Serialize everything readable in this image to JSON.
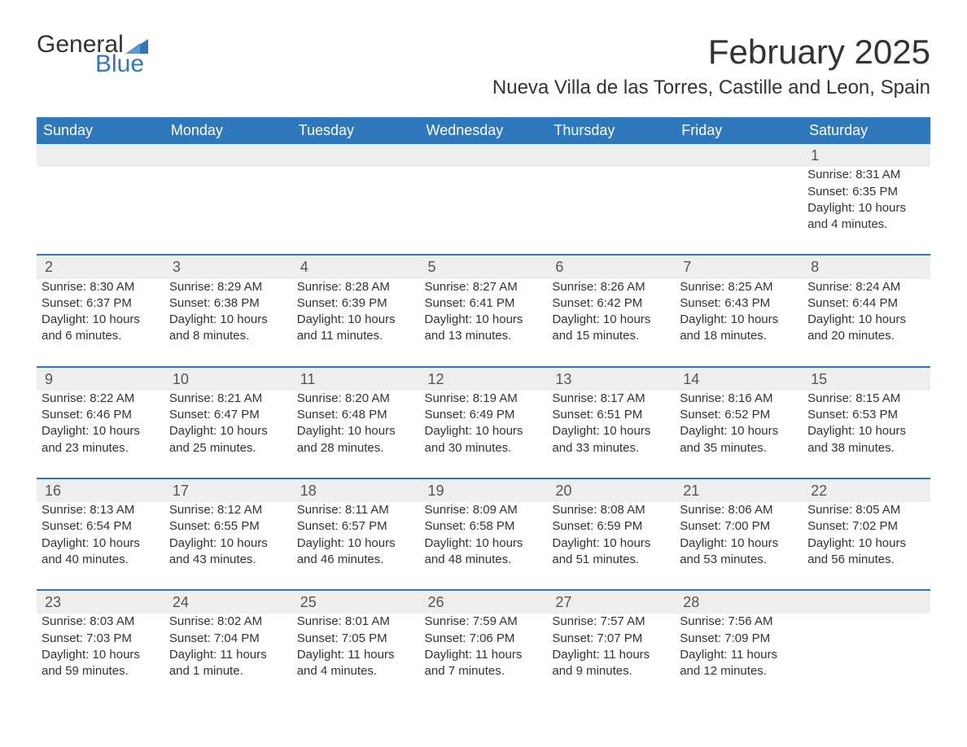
{
  "brand": {
    "word1": "General",
    "word2": "Blue",
    "text_color": "#333333",
    "accent_color": "#2f78bc"
  },
  "title": "February 2025",
  "location": "Nueva Villa de las Torres, Castille and Leon, Spain",
  "colors": {
    "header_bg": "#2f78bc",
    "header_text": "#ffffff",
    "daynum_bg": "#eeeeee",
    "text": "#333333",
    "separator": "#2f78bc",
    "background": "#ffffff"
  },
  "typography": {
    "title_fontsize": 42,
    "location_fontsize": 24,
    "header_fontsize": 18,
    "daynum_fontsize": 18,
    "cell_fontsize": 15
  },
  "weekdays": [
    "Sunday",
    "Monday",
    "Tuesday",
    "Wednesday",
    "Thursday",
    "Friday",
    "Saturday"
  ],
  "weeks": [
    [
      null,
      null,
      null,
      null,
      null,
      null,
      {
        "day": "1",
        "sunrise": "Sunrise: 8:31 AM",
        "sunset": "Sunset: 6:35 PM",
        "daylight": "Daylight: 10 hours and 4 minutes."
      }
    ],
    [
      {
        "day": "2",
        "sunrise": "Sunrise: 8:30 AM",
        "sunset": "Sunset: 6:37 PM",
        "daylight": "Daylight: 10 hours and 6 minutes."
      },
      {
        "day": "3",
        "sunrise": "Sunrise: 8:29 AM",
        "sunset": "Sunset: 6:38 PM",
        "daylight": "Daylight: 10 hours and 8 minutes."
      },
      {
        "day": "4",
        "sunrise": "Sunrise: 8:28 AM",
        "sunset": "Sunset: 6:39 PM",
        "daylight": "Daylight: 10 hours and 11 minutes."
      },
      {
        "day": "5",
        "sunrise": "Sunrise: 8:27 AM",
        "sunset": "Sunset: 6:41 PM",
        "daylight": "Daylight: 10 hours and 13 minutes."
      },
      {
        "day": "6",
        "sunrise": "Sunrise: 8:26 AM",
        "sunset": "Sunset: 6:42 PM",
        "daylight": "Daylight: 10 hours and 15 minutes."
      },
      {
        "day": "7",
        "sunrise": "Sunrise: 8:25 AM",
        "sunset": "Sunset: 6:43 PM",
        "daylight": "Daylight: 10 hours and 18 minutes."
      },
      {
        "day": "8",
        "sunrise": "Sunrise: 8:24 AM",
        "sunset": "Sunset: 6:44 PM",
        "daylight": "Daylight: 10 hours and 20 minutes."
      }
    ],
    [
      {
        "day": "9",
        "sunrise": "Sunrise: 8:22 AM",
        "sunset": "Sunset: 6:46 PM",
        "daylight": "Daylight: 10 hours and 23 minutes."
      },
      {
        "day": "10",
        "sunrise": "Sunrise: 8:21 AM",
        "sunset": "Sunset: 6:47 PM",
        "daylight": "Daylight: 10 hours and 25 minutes."
      },
      {
        "day": "11",
        "sunrise": "Sunrise: 8:20 AM",
        "sunset": "Sunset: 6:48 PM",
        "daylight": "Daylight: 10 hours and 28 minutes."
      },
      {
        "day": "12",
        "sunrise": "Sunrise: 8:19 AM",
        "sunset": "Sunset: 6:49 PM",
        "daylight": "Daylight: 10 hours and 30 minutes."
      },
      {
        "day": "13",
        "sunrise": "Sunrise: 8:17 AM",
        "sunset": "Sunset: 6:51 PM",
        "daylight": "Daylight: 10 hours and 33 minutes."
      },
      {
        "day": "14",
        "sunrise": "Sunrise: 8:16 AM",
        "sunset": "Sunset: 6:52 PM",
        "daylight": "Daylight: 10 hours and 35 minutes."
      },
      {
        "day": "15",
        "sunrise": "Sunrise: 8:15 AM",
        "sunset": "Sunset: 6:53 PM",
        "daylight": "Daylight: 10 hours and 38 minutes."
      }
    ],
    [
      {
        "day": "16",
        "sunrise": "Sunrise: 8:13 AM",
        "sunset": "Sunset: 6:54 PM",
        "daylight": "Daylight: 10 hours and 40 minutes."
      },
      {
        "day": "17",
        "sunrise": "Sunrise: 8:12 AM",
        "sunset": "Sunset: 6:55 PM",
        "daylight": "Daylight: 10 hours and 43 minutes."
      },
      {
        "day": "18",
        "sunrise": "Sunrise: 8:11 AM",
        "sunset": "Sunset: 6:57 PM",
        "daylight": "Daylight: 10 hours and 46 minutes."
      },
      {
        "day": "19",
        "sunrise": "Sunrise: 8:09 AM",
        "sunset": "Sunset: 6:58 PM",
        "daylight": "Daylight: 10 hours and 48 minutes."
      },
      {
        "day": "20",
        "sunrise": "Sunrise: 8:08 AM",
        "sunset": "Sunset: 6:59 PM",
        "daylight": "Daylight: 10 hours and 51 minutes."
      },
      {
        "day": "21",
        "sunrise": "Sunrise: 8:06 AM",
        "sunset": "Sunset: 7:00 PM",
        "daylight": "Daylight: 10 hours and 53 minutes."
      },
      {
        "day": "22",
        "sunrise": "Sunrise: 8:05 AM",
        "sunset": "Sunset: 7:02 PM",
        "daylight": "Daylight: 10 hours and 56 minutes."
      }
    ],
    [
      {
        "day": "23",
        "sunrise": "Sunrise: 8:03 AM",
        "sunset": "Sunset: 7:03 PM",
        "daylight": "Daylight: 10 hours and 59 minutes."
      },
      {
        "day": "24",
        "sunrise": "Sunrise: 8:02 AM",
        "sunset": "Sunset: 7:04 PM",
        "daylight": "Daylight: 11 hours and 1 minute."
      },
      {
        "day": "25",
        "sunrise": "Sunrise: 8:01 AM",
        "sunset": "Sunset: 7:05 PM",
        "daylight": "Daylight: 11 hours and 4 minutes."
      },
      {
        "day": "26",
        "sunrise": "Sunrise: 7:59 AM",
        "sunset": "Sunset: 7:06 PM",
        "daylight": "Daylight: 11 hours and 7 minutes."
      },
      {
        "day": "27",
        "sunrise": "Sunrise: 7:57 AM",
        "sunset": "Sunset: 7:07 PM",
        "daylight": "Daylight: 11 hours and 9 minutes."
      },
      {
        "day": "28",
        "sunrise": "Sunrise: 7:56 AM",
        "sunset": "Sunset: 7:09 PM",
        "daylight": "Daylight: 11 hours and 12 minutes."
      },
      null
    ]
  ]
}
